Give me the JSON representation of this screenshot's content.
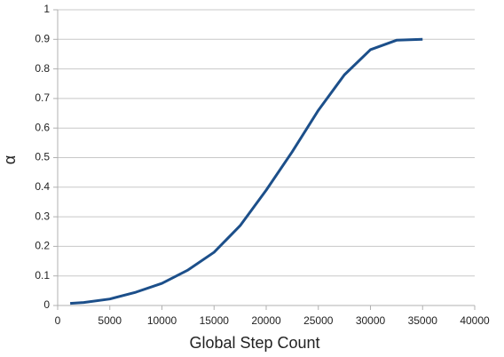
{
  "chart_data": {
    "type": "line",
    "x_label": "Global Step Count",
    "y_label": "α",
    "x": [
      1200,
      2500,
      5000,
      7500,
      10000,
      12500,
      15000,
      17500,
      20000,
      22500,
      25000,
      27500,
      30000,
      32500,
      35000
    ],
    "series": [
      {
        "name": "α",
        "color": "#1c4f8a",
        "values": [
          0.007,
          0.01,
          0.022,
          0.045,
          0.075,
          0.12,
          0.18,
          0.27,
          0.39,
          0.52,
          0.66,
          0.78,
          0.865,
          0.897,
          0.9
        ]
      }
    ],
    "xlim": [
      0,
      40000
    ],
    "xticks": [
      0,
      5000,
      10000,
      15000,
      20000,
      25000,
      30000,
      35000,
      40000
    ],
    "ylim": [
      0,
      1
    ],
    "yticks": [
      0,
      0.1,
      0.2,
      0.3,
      0.4,
      0.5,
      0.6,
      0.7,
      0.8,
      0.9,
      1
    ],
    "grid": true
  }
}
